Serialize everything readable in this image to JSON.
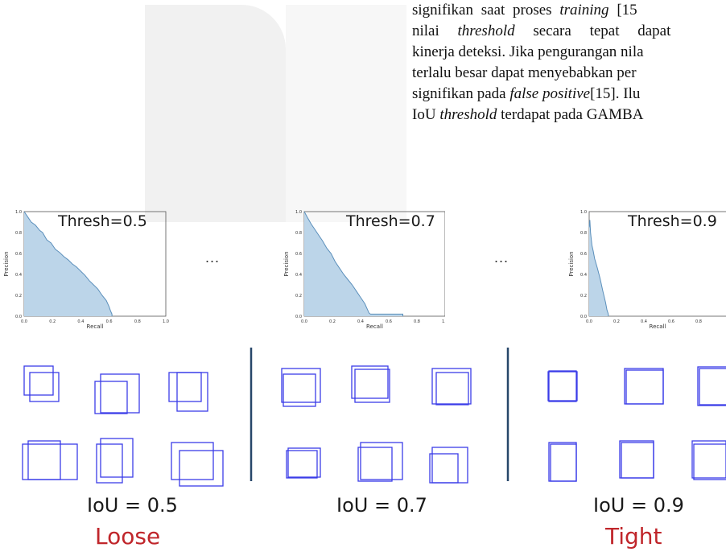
{
  "paragraph": {
    "lines": [
      [
        [
          "signifikan saat proses ",
          false
        ],
        [
          "training",
          true
        ],
        [
          " [15",
          false
        ]
      ],
      [
        [
          "nilai ",
          false
        ],
        [
          "threshold",
          true
        ],
        [
          " secara tepat dapat",
          false
        ]
      ],
      [
        [
          "kinerja deteksi. Jika pengurangan nila",
          false
        ]
      ],
      [
        [
          "terlalu besar dapat menyebabkan per",
          false
        ]
      ],
      [
        [
          "signifikan pada ",
          false
        ],
        [
          "false positive",
          true
        ],
        [
          "[15]. Ilu",
          false
        ]
      ],
      [
        [
          "IoU ",
          false
        ],
        [
          "threshold",
          true
        ],
        [
          " terdapat pada GAMBA",
          false
        ]
      ]
    ]
  },
  "chart_data": [
    {
      "type": "area",
      "annotation": "Thresh=0.5",
      "xlabel": "Recall",
      "ylabel": "Precision",
      "xlim": [
        0,
        1
      ],
      "ylim": [
        0,
        1
      ],
      "x_ticks": [
        "0.0",
        "0.2",
        "0.4",
        "0.6",
        "0.8",
        "1.0"
      ],
      "y_ticks": [
        "0.0",
        "0.2",
        "0.4",
        "0.6",
        "0.8",
        "1.0"
      ],
      "x": [
        0,
        0.02,
        0.05,
        0.08,
        0.11,
        0.13,
        0.16,
        0.19,
        0.22,
        0.25,
        0.28,
        0.31,
        0.34,
        0.37,
        0.4,
        0.43,
        0.46,
        0.49,
        0.52,
        0.55,
        0.58,
        0.6,
        0.61,
        0.62,
        0.62
      ],
      "y": [
        1.0,
        0.96,
        0.9,
        0.87,
        0.82,
        0.8,
        0.73,
        0.7,
        0.64,
        0.61,
        0.57,
        0.54,
        0.5,
        0.47,
        0.43,
        0.39,
        0.34,
        0.3,
        0.26,
        0.2,
        0.15,
        0.09,
        0.05,
        0.02,
        0.0
      ]
    },
    {
      "type": "area",
      "annotation": "Thresh=0.7",
      "xlabel": "Recall",
      "ylabel": "Precision",
      "xlim": [
        0,
        1
      ],
      "ylim": [
        0,
        1
      ],
      "x_ticks": [
        "0.0",
        "0.2",
        "0.4",
        "0.6",
        "0.8",
        "1.0"
      ],
      "y_ticks": [
        "0.0",
        "0.2",
        "0.4",
        "0.6",
        "0.8",
        "1.0"
      ],
      "x": [
        0,
        0.02,
        0.05,
        0.08,
        0.1,
        0.13,
        0.16,
        0.19,
        0.22,
        0.25,
        0.28,
        0.31,
        0.34,
        0.37,
        0.4,
        0.43,
        0.45,
        0.46,
        0.47,
        0.6,
        0.7,
        0.7
      ],
      "y": [
        1.0,
        0.95,
        0.88,
        0.82,
        0.78,
        0.72,
        0.65,
        0.6,
        0.52,
        0.46,
        0.4,
        0.35,
        0.3,
        0.24,
        0.18,
        0.12,
        0.06,
        0.03,
        0.02,
        0.02,
        0.02,
        0.0
      ]
    },
    {
      "type": "area",
      "annotation": "Thresh=0.9",
      "xlabel": "Recall",
      "ylabel": "Precision",
      "xlim": [
        0,
        1
      ],
      "ylim": [
        0,
        1
      ],
      "x_ticks": [
        "0.0",
        "0.2",
        "0.4",
        "0.6",
        "0.8"
      ],
      "y_ticks": [
        "0.0",
        "0.2",
        "0.4",
        "0.6",
        "0.8",
        "1.0"
      ],
      "x": [
        0,
        0.005,
        0.01,
        0.02,
        0.03,
        0.04,
        0.06,
        0.08,
        0.1,
        0.12,
        0.13,
        0.14,
        0.14
      ],
      "y": [
        0.85,
        0.92,
        0.8,
        0.68,
        0.62,
        0.55,
        0.46,
        0.36,
        0.24,
        0.13,
        0.06,
        0.02,
        0.0
      ]
    }
  ],
  "ellipsis": "...",
  "boxes_panels": [
    {
      "iou_label": "IoU = 0.5",
      "qualifier": "Loose",
      "pairs": [
        [
          [
            30,
            455,
            36,
            36
          ],
          [
            37,
            463,
            36,
            36
          ]
        ],
        [
          [
            118,
            474,
            40,
            40
          ],
          [
            125,
            465,
            48,
            48
          ]
        ],
        [
          [
            210,
            463,
            40,
            36
          ],
          [
            220,
            463,
            38,
            48
          ]
        ],
        [
          [
            35,
            548,
            40,
            48
          ],
          [
            28,
            552,
            68,
            44
          ]
        ],
        [
          [
            120,
            552,
            32,
            48
          ],
          [
            125,
            545,
            40,
            48
          ]
        ],
        [
          [
            213,
            550,
            52,
            46
          ],
          [
            223,
            560,
            54,
            44
          ]
        ]
      ]
    },
    {
      "iou_label": "IoU = 0.7",
      "qualifier": "",
      "pairs": [
        [
          [
            350,
            458,
            48,
            42
          ],
          [
            352,
            465,
            40,
            40
          ]
        ],
        [
          [
            437,
            455,
            45,
            40
          ],
          [
            441,
            459,
            43,
            41
          ]
        ],
        [
          [
            537,
            458,
            48,
            44
          ],
          [
            542,
            463,
            40,
            40
          ]
        ],
        [
          [
            358,
            557,
            40,
            36
          ],
          [
            356,
            560,
            38,
            34
          ]
        ],
        [
          [
            445,
            556,
            42,
            42
          ],
          [
            448,
            550,
            52,
            46
          ]
        ],
        [
          [
            537,
            556,
            44,
            44
          ],
          [
            534,
            564,
            35,
            36
          ]
        ]
      ]
    },
    {
      "iou_label": "IoU = 0.9",
      "qualifier": "Tight",
      "pairs": [
        [
          [
            682,
            461,
            34,
            38
          ],
          [
            681,
            462,
            36,
            36
          ]
        ],
        [
          [
            776,
            458,
            48,
            44
          ],
          [
            778,
            460,
            46,
            42
          ]
        ],
        [
          [
            867,
            456,
            40,
            48
          ],
          [
            869,
            458,
            38,
            45
          ]
        ],
        [
          [
            682,
            550,
            34,
            48
          ],
          [
            684,
            552,
            32,
            46
          ]
        ],
        [
          [
            770,
            548,
            42,
            46
          ],
          [
            772,
            550,
            40,
            44
          ]
        ],
        [
          [
            860,
            548,
            42,
            46
          ],
          [
            862,
            552,
            42,
            44
          ]
        ]
      ]
    }
  ],
  "colors": {
    "area_fill": "#bcd5e9",
    "area_line": "#5b8fbb",
    "box_stroke": "#3b3de8",
    "divider": "#27476a",
    "qualifier": "#c0262b"
  }
}
